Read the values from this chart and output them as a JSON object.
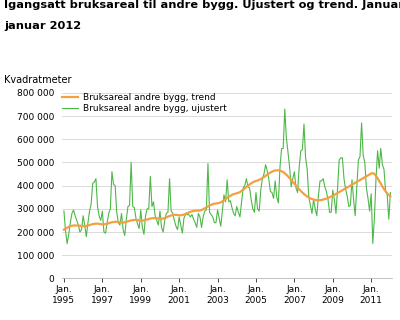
{
  "title_line1": "Igangsatt bruksareal til andre bygg. Ujustert og trend. Januar 1995-",
  "title_line2": "januar 2012",
  "ylabel": "Kvadratmeter",
  "ylim": [
    0,
    800000
  ],
  "yticks": [
    0,
    100000,
    200000,
    300000,
    400000,
    500000,
    600000,
    700000,
    800000
  ],
  "ytick_labels": [
    "0",
    "100 000",
    "200 000",
    "300 000",
    "400 000",
    "500 000",
    "600 000",
    "700 000",
    "800 000"
  ],
  "xtick_years": [
    1995,
    1997,
    1999,
    2001,
    2003,
    2005,
    2007,
    2009,
    2011
  ],
  "trend_color": "#f4a040",
  "unadjusted_color": "#4db848",
  "legend_trend": "Bruksareal andre bygg, trend",
  "legend_unadjusted": "Bruksareal andre bygg, ujustert",
  "background_color": "#ffffff",
  "grid_color": "#cccccc",
  "trend_values": [
    210000,
    215000,
    218000,
    222000,
    225000,
    227000,
    228000,
    228000,
    228000,
    228000,
    227000,
    226000,
    225000,
    225000,
    226000,
    228000,
    230000,
    232000,
    234000,
    235000,
    236000,
    236000,
    235000,
    234000,
    233000,
    233000,
    234000,
    236000,
    238000,
    240000,
    242000,
    243000,
    244000,
    244000,
    243000,
    242000,
    241000,
    241000,
    242000,
    244000,
    246000,
    248000,
    250000,
    251000,
    252000,
    252000,
    251000,
    250000,
    249000,
    249000,
    250000,
    252000,
    254000,
    256000,
    258000,
    259000,
    260000,
    260000,
    259000,
    258000,
    257000,
    257000,
    258000,
    260000,
    263000,
    266000,
    269000,
    271000,
    273000,
    274000,
    274000,
    273000,
    272000,
    272000,
    273000,
    275000,
    278000,
    281000,
    284000,
    287000,
    289000,
    291000,
    292000,
    292000,
    292000,
    293000,
    295000,
    298000,
    302000,
    306000,
    310000,
    314000,
    317000,
    320000,
    322000,
    323000,
    324000,
    325000,
    328000,
    332000,
    337000,
    342000,
    347000,
    352000,
    356000,
    360000,
    363000,
    365000,
    367000,
    369000,
    372000,
    377000,
    382000,
    388000,
    394000,
    400000,
    405000,
    410000,
    414000,
    417000,
    420000,
    422000,
    425000,
    428000,
    432000,
    437000,
    442000,
    447000,
    452000,
    456000,
    460000,
    463000,
    465000,
    466000,
    466000,
    465000,
    462000,
    458000,
    453000,
    447000,
    440000,
    432000,
    424000,
    416000,
    408000,
    400000,
    392000,
    384000,
    377000,
    370000,
    364000,
    358000,
    353000,
    349000,
    345000,
    342000,
    340000,
    338000,
    337000,
    337000,
    337000,
    338000,
    340000,
    342000,
    344000,
    347000,
    350000,
    353000,
    356000,
    360000,
    364000,
    368000,
    372000,
    376000,
    380000,
    384000,
    388000,
    392000,
    396000,
    400000,
    404000,
    408000,
    412000,
    416000,
    420000,
    424000,
    428000,
    432000,
    436000,
    440000,
    444000,
    448000,
    452000,
    454000,
    450000,
    442000,
    432000,
    420000,
    408000,
    396000,
    385000,
    375000,
    367000,
    360000,
    354000
  ],
  "unadjusted_values": [
    290000,
    205000,
    150000,
    190000,
    240000,
    280000,
    295000,
    270000,
    250000,
    230000,
    200000,
    210000,
    270000,
    230000,
    180000,
    240000,
    290000,
    320000,
    410000,
    415000,
    430000,
    310000,
    270000,
    250000,
    290000,
    200000,
    195000,
    240000,
    280000,
    300000,
    460000,
    405000,
    400000,
    285000,
    240000,
    230000,
    280000,
    210000,
    185000,
    255000,
    310000,
    315000,
    500000,
    310000,
    305000,
    260000,
    235000,
    215000,
    295000,
    220000,
    190000,
    270000,
    300000,
    300000,
    440000,
    310000,
    330000,
    270000,
    250000,
    230000,
    290000,
    220000,
    200000,
    250000,
    280000,
    285000,
    430000,
    290000,
    280000,
    250000,
    225000,
    210000,
    265000,
    230000,
    195000,
    260000,
    275000,
    275000,
    275000,
    265000,
    275000,
    255000,
    240000,
    220000,
    280000,
    265000,
    220000,
    265000,
    290000,
    295000,
    495000,
    285000,
    275000,
    265000,
    240000,
    240000,
    295000,
    260000,
    225000,
    290000,
    360000,
    330000,
    425000,
    330000,
    335000,
    305000,
    280000,
    270000,
    310000,
    285000,
    265000,
    330000,
    390000,
    400000,
    430000,
    395000,
    390000,
    340000,
    300000,
    285000,
    370000,
    300000,
    290000,
    380000,
    430000,
    450000,
    490000,
    465000,
    430000,
    375000,
    370000,
    345000,
    420000,
    350000,
    325000,
    480000,
    560000,
    560000,
    730000,
    605000,
    545000,
    480000,
    395000,
    430000,
    460000,
    390000,
    370000,
    480000,
    550000,
    555000,
    665000,
    520000,
    470000,
    350000,
    315000,
    280000,
    340000,
    300000,
    270000,
    355000,
    420000,
    420000,
    430000,
    395000,
    375000,
    340000,
    285000,
    285000,
    380000,
    340000,
    280000,
    390000,
    510000,
    520000,
    520000,
    430000,
    385000,
    355000,
    310000,
    315000,
    425000,
    340000,
    270000,
    395000,
    510000,
    525000,
    670000,
    530000,
    500000,
    390000,
    345000,
    290000,
    365000,
    150000,
    260000,
    430000,
    550000,
    475000,
    560000,
    490000,
    470000,
    375000,
    360000,
    255000,
    370000
  ]
}
